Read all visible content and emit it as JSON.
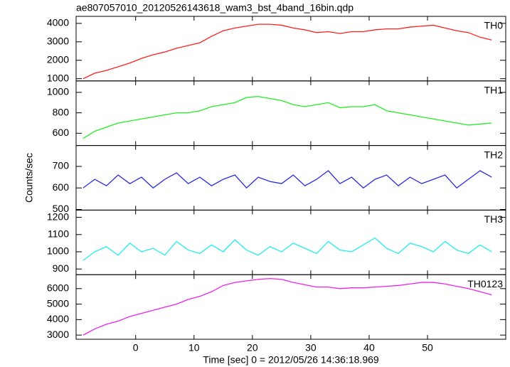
{
  "chart_data": {
    "type": "line",
    "title": "ae807057010_20120526143618_wam3_bst_4band_16bin.qdp",
    "xlabel": "Time [sec] 0 = 2012/05/26 14:36:18.969",
    "ylabel": "Counts/sec",
    "xlim": [
      -10.2,
      63.4
    ],
    "xticks": [
      0,
      10,
      20,
      30,
      40,
      50
    ],
    "x": [
      -9,
      -7,
      -5,
      -3,
      -1,
      1,
      3,
      5,
      7,
      9,
      11,
      13,
      15,
      17,
      19,
      21,
      23,
      25,
      27,
      29,
      31,
      33,
      35,
      37,
      39,
      41,
      43,
      45,
      47,
      49,
      51,
      53,
      55,
      57,
      59,
      61
    ],
    "series": [
      {
        "name": "TH0",
        "color": "#ff2020",
        "ylim": [
          880,
          4380
        ],
        "yticks": [
          1000,
          2000,
          3000,
          4000
        ],
        "values": [
          1000,
          1300,
          1450,
          1650,
          1850,
          2100,
          2300,
          2450,
          2650,
          2800,
          2950,
          3300,
          3600,
          3750,
          3850,
          3950,
          3950,
          3900,
          3750,
          3650,
          3500,
          3550,
          3450,
          3550,
          3550,
          3650,
          3700,
          3700,
          3800,
          3850,
          3900,
          3750,
          3600,
          3500,
          3250,
          3100
        ]
      },
      {
        "name": "TH1",
        "color": "#22ee22",
        "ylim": [
          480,
          1112
        ],
        "yticks": [
          600,
          800,
          1000
        ],
        "values": [
          550,
          620,
          660,
          700,
          720,
          740,
          760,
          780,
          800,
          800,
          820,
          860,
          880,
          900,
          950,
          960,
          940,
          920,
          880,
          860,
          880,
          900,
          850,
          860,
          860,
          880,
          820,
          800,
          780,
          760,
          740,
          720,
          700,
          680,
          690,
          700
        ]
      },
      {
        "name": "TH2",
        "color": "#2a2ae0",
        "ylim": [
          497,
          797
        ],
        "yticks": [
          500,
          600,
          700
        ],
        "values": [
          600,
          640,
          610,
          660,
          620,
          650,
          600,
          640,
          670,
          620,
          650,
          610,
          640,
          660,
          600,
          650,
          630,
          620,
          660,
          610,
          640,
          680,
          620,
          650,
          600,
          640,
          660,
          610,
          650,
          620,
          640,
          660,
          600,
          640,
          680,
          650
        ]
      },
      {
        "name": "TH3",
        "color": "#22eeee",
        "ylim": [
          867,
          1242
        ],
        "yticks": [
          900,
          1000,
          1100,
          1200
        ],
        "values": [
          950,
          1000,
          1030,
          980,
          1050,
          1000,
          1020,
          980,
          1060,
          1010,
          990,
          1040,
          1000,
          1070,
          1010,
          980,
          1030,
          1000,
          1050,
          1020,
          990,
          1060,
          1010,
          1000,
          1040,
          1080,
          1020,
          990,
          1050,
          1030,
          1000,
          1060,
          1010,
          990,
          1040,
          1000
        ]
      },
      {
        "name": "TH0123",
        "color": "#ee22ee",
        "ylim": [
          2730,
          6900
        ],
        "yticks": [
          3000,
          4000,
          5000,
          6000
        ],
        "values": [
          3000,
          3400,
          3700,
          3900,
          4200,
          4400,
          4600,
          4800,
          5000,
          5300,
          5500,
          5800,
          6200,
          6400,
          6500,
          6600,
          6650,
          6600,
          6400,
          6250,
          6100,
          6100,
          6000,
          6050,
          6050,
          6100,
          6150,
          6200,
          6300,
          6400,
          6400,
          6300,
          6150,
          6000,
          5800,
          5600
        ]
      }
    ]
  }
}
